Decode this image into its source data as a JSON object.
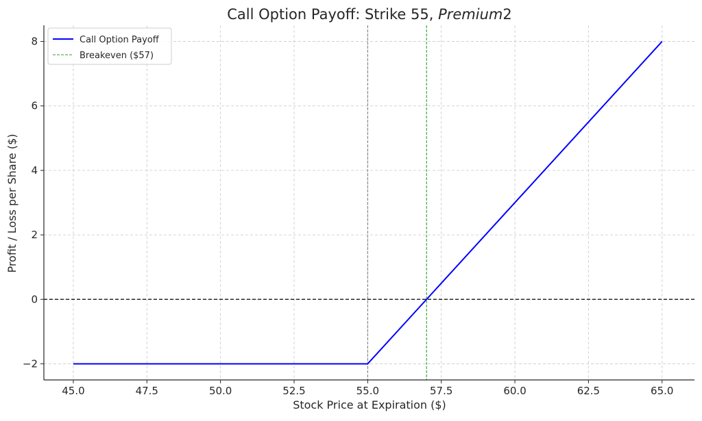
{
  "chart_data": {
    "type": "line",
    "title": "Call Option Payoff: Strike 55, ",
    "title_italic": "Premium",
    "title_suffix": "2",
    "xlabel": "Stock Price at Expiration ($)",
    "ylabel": "Profit / Loss per Share ($)",
    "xlim": [
      44,
      66.1
    ],
    "ylim": [
      -2.5,
      8.5
    ],
    "x_ticks": [
      45.0,
      47.5,
      50.0,
      52.5,
      55.0,
      57.5,
      60.0,
      62.5,
      65.0
    ],
    "x_tick_labels": [
      "45.0",
      "47.5",
      "50.0",
      "52.5",
      "55.0",
      "57.5",
      "60.0",
      "62.5",
      "65.0"
    ],
    "y_ticks": [
      -2,
      0,
      2,
      4,
      6,
      8
    ],
    "y_tick_labels": [
      "−2",
      "0",
      "2",
      "4",
      "6",
      "8"
    ],
    "grid": true,
    "legend_position": "top-left",
    "series": [
      {
        "name": "Call Option Payoff",
        "color": "#0000ff",
        "style": "solid",
        "x": [
          45,
          55,
          65
        ],
        "y": [
          -2,
          -2,
          8
        ]
      }
    ],
    "reference_lines": [
      {
        "name": "Breakeven ($57)",
        "orientation": "vertical",
        "value": 57,
        "color": "#2ca02c",
        "style": "dashed"
      },
      {
        "orientation": "vertical",
        "value": 55,
        "color": "#808080",
        "style": "dashed"
      },
      {
        "orientation": "horizontal",
        "value": 0,
        "color": "#000000",
        "style": "dashed"
      }
    ]
  }
}
